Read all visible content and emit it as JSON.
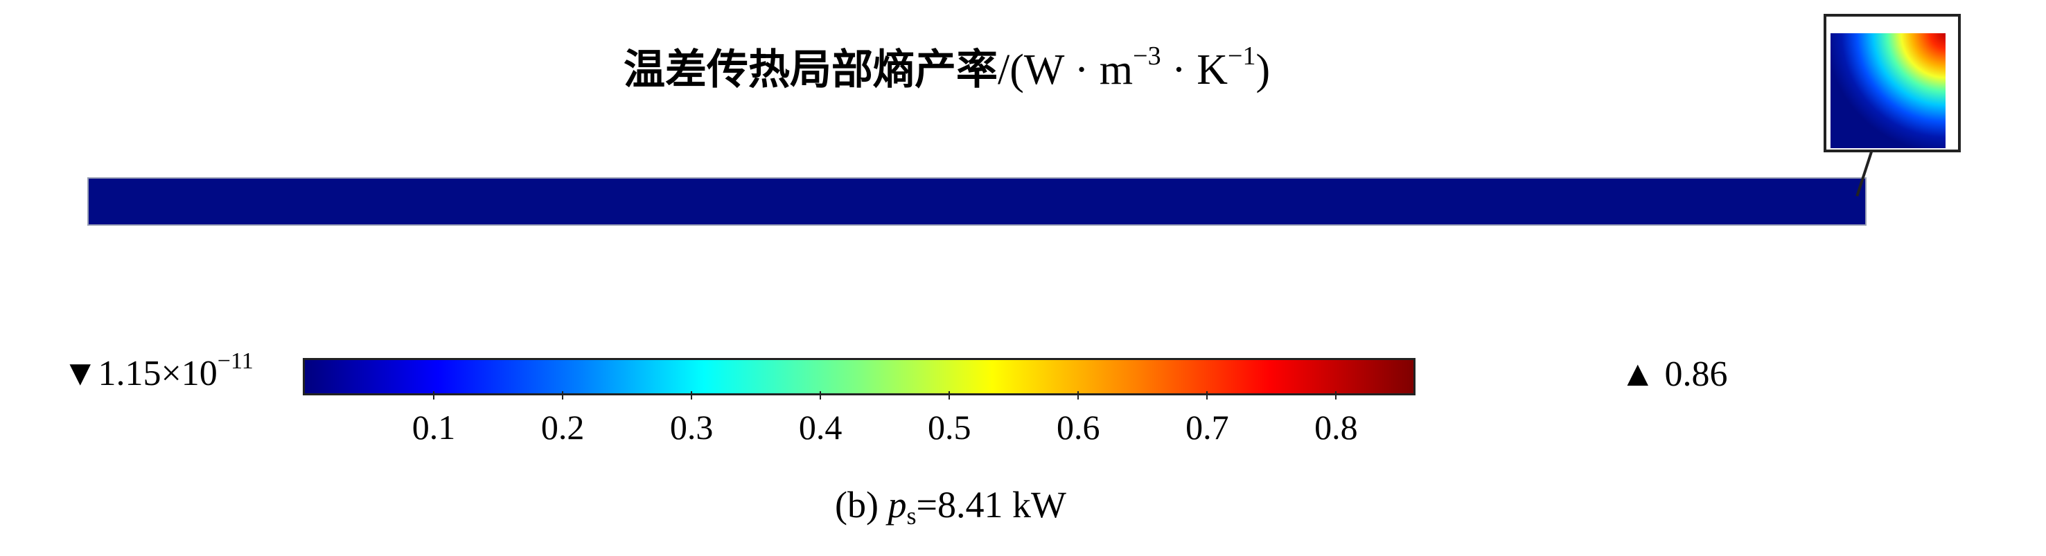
{
  "title": {
    "quantity": "温差传热局部熵产率",
    "unit_prefix": "/(W · m",
    "exp_m": "−3",
    "unit_mid": " · K",
    "exp_k": "−1",
    "unit_suffix": ")"
  },
  "colorbar": {
    "min_symbol": "▼",
    "min_mantissa": "1.15×10",
    "min_exponent": "−11",
    "max_symbol": "▲",
    "max_value": "0.86",
    "ticks": [
      "0.1",
      "0.2",
      "0.3",
      "0.4",
      "0.5",
      "0.6",
      "0.7",
      "0.8"
    ],
    "range": [
      0,
      0.86
    ],
    "colormap": "rainbow"
  },
  "caption": {
    "label": "(b) ",
    "var": "p",
    "subscript": "s",
    "value": "=8.41 kW"
  },
  "colors": {
    "field_background": "#000a85",
    "hotspot": "#ff2a00"
  }
}
